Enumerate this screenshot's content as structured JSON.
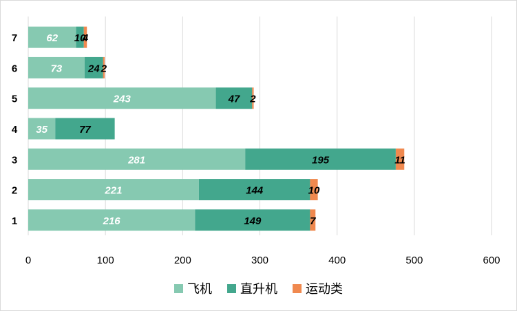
{
  "chart_data": {
    "type": "bar",
    "orientation": "horizontal",
    "stacked": true,
    "title": "",
    "xlabel": "",
    "ylabel": "",
    "categories": [
      "1",
      "2",
      "3",
      "4",
      "5",
      "6",
      "7"
    ],
    "xlim": [
      0,
      600
    ],
    "xticks": [
      "0",
      "100",
      "200",
      "300",
      "400",
      "500",
      "600"
    ],
    "grid": "vertical",
    "legend_position": "bottom",
    "series": [
      {
        "name": "飞机",
        "color": "#86c9b1",
        "label_color": "#ffffff",
        "values": [
          216,
          221,
          281,
          35,
          243,
          73,
          62
        ]
      },
      {
        "name": "直升机",
        "color": "#43a78d",
        "label_color": "#000000",
        "values": [
          149,
          144,
          195,
          77,
          47,
          24,
          10
        ]
      },
      {
        "name": "运动类",
        "color": "#f0894f",
        "label_color": "#000000",
        "values": [
          7,
          10,
          11,
          null,
          2,
          2,
          4
        ]
      }
    ]
  }
}
